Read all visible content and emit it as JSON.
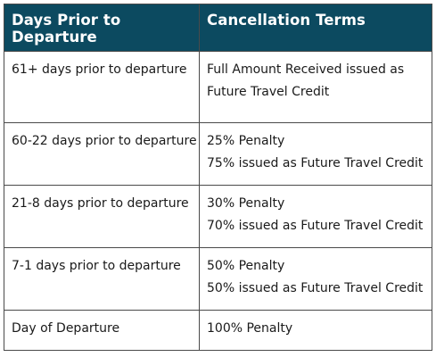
{
  "table": {
    "headers": [
      "Days Prior to Departure",
      "Cancellation Terms"
    ],
    "rows": [
      {
        "days": "61+ days prior to departure",
        "terms": [
          "Full Amount Received issued as",
          "Future Travel Credit"
        ]
      },
      {
        "days": "60-22 days prior to departure",
        "terms": [
          "25% Penalty",
          "75% issued as Future Travel Credit"
        ]
      },
      {
        "days": "21-8 days prior to departure",
        "terms": [
          "30% Penalty",
          "70% issued as Future Travel Credit"
        ]
      },
      {
        "days": "7-1 days prior to departure",
        "terms": [
          "50% Penalty",
          "50% issued as Future Travel Credit"
        ]
      },
      {
        "days": "Day of Departure",
        "terms": [
          "100% Penalty"
        ]
      }
    ],
    "colors": {
      "header_background": "#0c4a60",
      "header_text": "#ffffff",
      "border": "#4a4a4a"
    }
  }
}
